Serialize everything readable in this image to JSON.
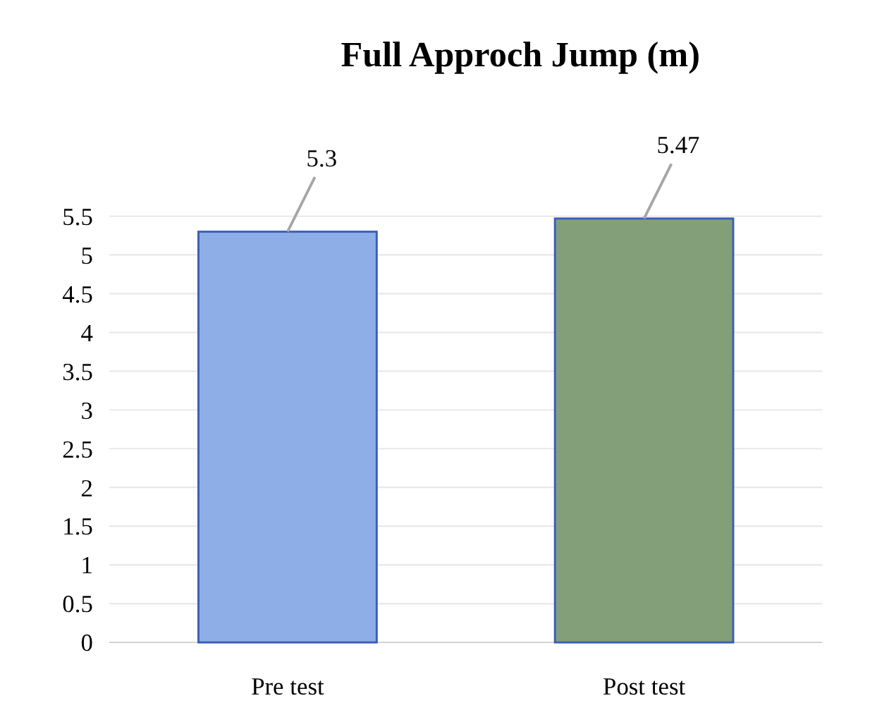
{
  "chart_data": {
    "type": "bar",
    "title": "Full Approch Jump (m)",
    "categories": [
      "Pre test",
      "Post test"
    ],
    "values": [
      5.3,
      5.47
    ],
    "colors": [
      "#8eaee8",
      "#839f79"
    ],
    "ylim": [
      0,
      5.5
    ],
    "yticks": [
      0,
      0.5,
      1,
      1.5,
      2,
      2.5,
      3,
      3.5,
      4,
      4.5,
      5,
      5.5
    ],
    "grid": true,
    "data_labels": true
  }
}
